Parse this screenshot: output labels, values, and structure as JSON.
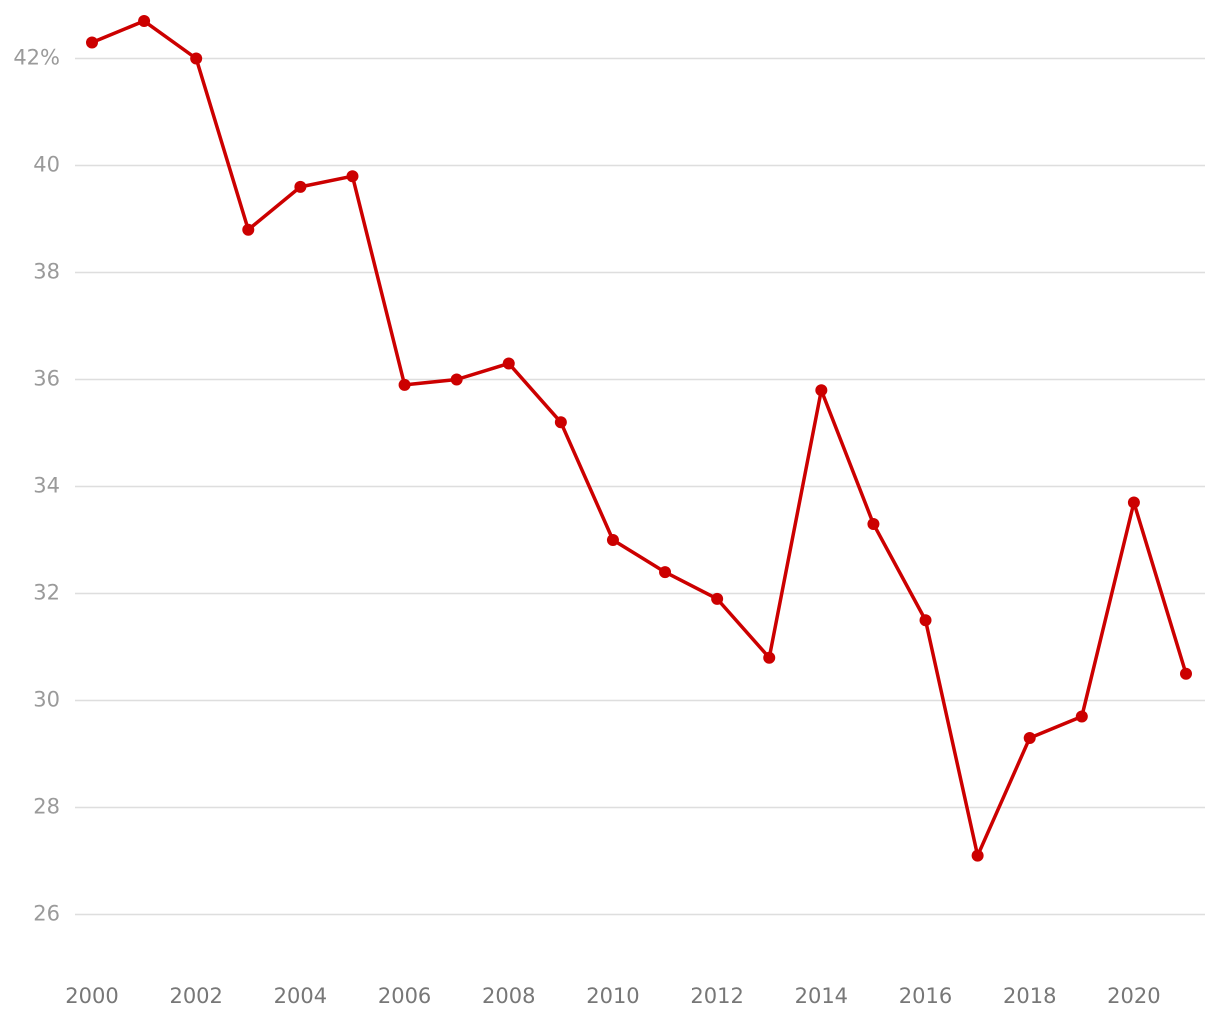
{
  "chart_data": {
    "type": "line",
    "x": [
      2000,
      2001,
      2002,
      2003,
      2004,
      2005,
      2006,
      2007,
      2008,
      2009,
      2010,
      2011,
      2012,
      2013,
      2014,
      2015,
      2016,
      2017,
      2018,
      2019,
      2020,
      2021
    ],
    "series": [
      {
        "color": "#cc0000",
        "values": [
          42.3,
          42.7,
          42.0,
          38.8,
          39.6,
          39.8,
          35.9,
          36.0,
          36.3,
          35.2,
          33.0,
          32.4,
          31.9,
          30.8,
          35.8,
          33.3,
          31.5,
          27.1,
          29.3,
          29.7,
          33.7,
          30.5
        ]
      }
    ],
    "xlim": [
      2000,
      2021
    ],
    "xticks": [
      2000,
      2002,
      2004,
      2006,
      2008,
      2010,
      2012,
      2014,
      2016,
      2018,
      2020
    ],
    "ylim": [
      25,
      43
    ],
    "yticks": [
      26,
      28,
      30,
      32,
      34,
      36,
      38,
      40,
      {
        "value": 42,
        "label": "42%"
      }
    ],
    "grid": true
  }
}
